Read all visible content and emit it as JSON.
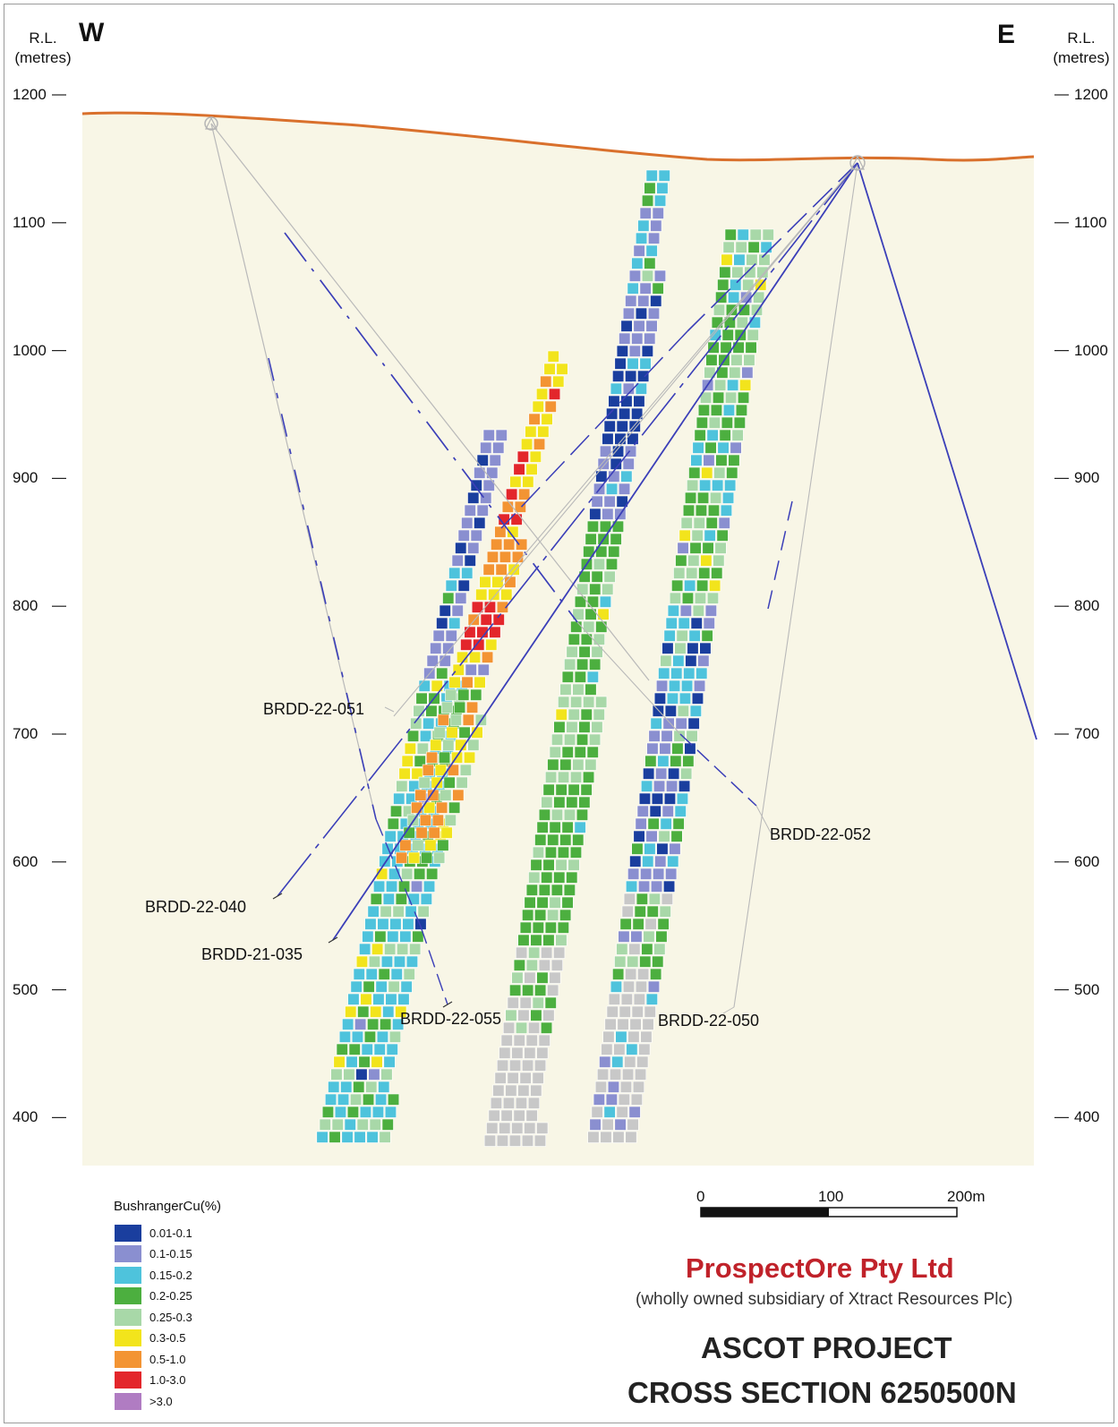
{
  "header": {
    "left_axis_label": "R.L.",
    "left_axis_unit": "(metres)",
    "right_axis_label": "R.L.",
    "right_axis_unit": "(metres)",
    "west_label": "W",
    "east_label": "E"
  },
  "axis": {
    "rl_ticks": [
      "1200",
      "1100",
      "1000",
      "900",
      "800",
      "700",
      "600",
      "500",
      "400"
    ],
    "rl_range": [
      380,
      1205
    ]
  },
  "drill_holes": [
    {
      "id": "BRDD-22-051"
    },
    {
      "id": "BRDD-22-052"
    },
    {
      "id": "BRDD-22-040"
    },
    {
      "id": "BRDD-21-035"
    },
    {
      "id": "BRDD-22-055"
    },
    {
      "id": "BRDD-22-050"
    }
  ],
  "legend": {
    "title": "BushrangerCu(%)",
    "items": [
      {
        "label": "0.01-0.1",
        "color": "#1a3e9e"
      },
      {
        "label": "0.1-0.15",
        "color": "#8a8fd0"
      },
      {
        "label": "0.15-0.2",
        "color": "#4ec3dc"
      },
      {
        "label": "0.2-0.25",
        "color": "#4caf3f"
      },
      {
        "label": "0.25-0.3",
        "color": "#a8d8a8"
      },
      {
        "label": "0.3-0.5",
        "color": "#f2e41c"
      },
      {
        "label": "0.5-1.0",
        "color": "#f39433"
      },
      {
        "label": "1.0-3.0",
        "color": "#e3262b"
      },
      {
        "label": ">3.0",
        "color": "#b07cc2"
      }
    ]
  },
  "scale_bar": {
    "labels": [
      "0",
      "100",
      "200m"
    ]
  },
  "colors": {
    "background": "#f8f6e6",
    "topography": "#d9702c",
    "drill_trace": "#3b3fb8",
    "unassayed": "#c8c8c8"
  },
  "company": {
    "name": "ProspectOre Pty Ltd",
    "subsidiary": "(wholly owned subsidiary of Xtract Resources Plc)"
  },
  "title": {
    "line1": "ASCOT PROJECT",
    "line2": "CROSS SECTION 6250500N"
  }
}
